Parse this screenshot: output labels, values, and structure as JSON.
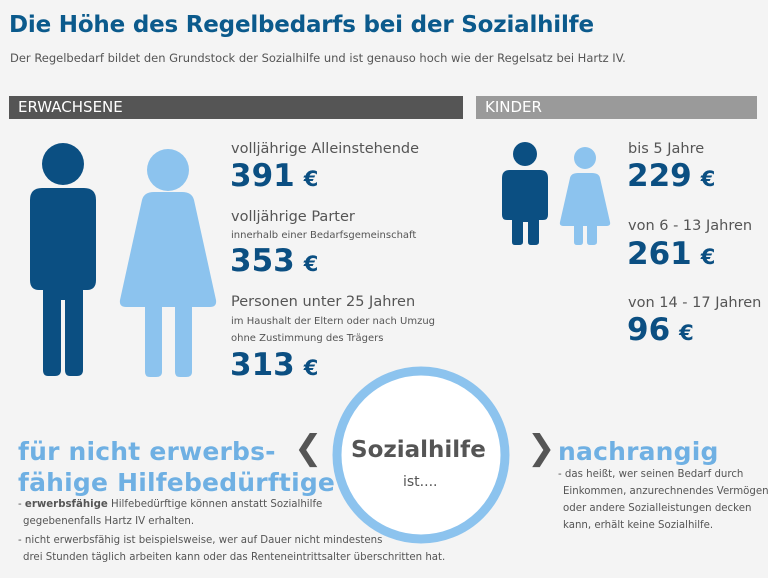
{
  "title": "Die Höhe des Regelbedarfs bei der Sozialhilfe",
  "subtitle": "Der Regelbedarf bildet den Grundstock der Sozialhilfe und ist  genauso hoch wie der Regelsatz bei Hartz IV.",
  "colors": {
    "dark_blue": "#0b4f82",
    "light_blue": "#8cc3ee",
    "accent_text": "#6fb0e3",
    "grey_bar": "#555555"
  },
  "adults": {
    "header": "ERWACHSENE",
    "icons": [
      "man-icon",
      "woman-icon"
    ],
    "items": [
      {
        "label": "volljährige Alleinstehende",
        "sub": [
          "",
          ""
        ],
        "amount": "391",
        "currency": "€"
      },
      {
        "label": "volljährige Parter",
        "sub": [
          "innerhalb einer Bedarfsgemeinschaft",
          ""
        ],
        "amount": "353",
        "currency": "€"
      },
      {
        "label": "Personen unter 25 Jahren",
        "sub": [
          "im Haushalt der Eltern oder nach Umzug",
          "ohne Zustimmung des Trägers"
        ],
        "amount": "313",
        "currency": "€"
      }
    ]
  },
  "kids": {
    "header": "KINDER",
    "icons": [
      "boy-icon",
      "girl-icon"
    ],
    "items": [
      {
        "label": "bis 5 Jahre",
        "amount": "229",
        "currency": "€"
      },
      {
        "label": "von 6 - 13 Jahren",
        "amount": "261",
        "currency": "€"
      },
      {
        "label": "von 14 - 17 Jahren",
        "amount": "96",
        "currency": "€"
      }
    ]
  },
  "center": {
    "word": "Sozialhilfe",
    "suffix": "ist....",
    "chevron_left": "❮",
    "chevron_right": "❯"
  },
  "left_block": {
    "heading_line1": "für nicht erwerbs-",
    "heading_line2": "fähige Hilfebedürftige",
    "note1_dash": "- ",
    "note1_bold": "erwerbsfähige",
    "note1_rest": " Hilfebedürftige können anstatt Sozialhilfe",
    "note1_line2": "gegebenenfalls Hartz IV erhalten.",
    "note2_line1": "- nicht erwerbsfähig ist beispielsweise, wer auf Dauer nicht mindestens",
    "note2_line2": "drei Stunden täglich arbeiten kann oder das Renteneintrittsalter überschritten hat."
  },
  "right_block": {
    "heading": "nachrangig",
    "note_line1": "- das heißt, wer seinen Bedarf durch",
    "note_line2": "Einkommen, anzurechnendes Vermögen",
    "note_line3": "oder andere Sozialleistungen decken",
    "note_line4": "kann, erhält keine Sozialhilfe."
  }
}
